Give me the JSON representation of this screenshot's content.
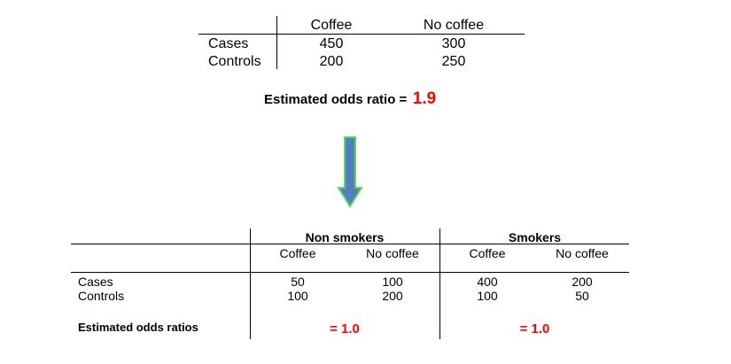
{
  "crude_table": {
    "col_headers": [
      "Coffee",
      "No coffee"
    ],
    "rows": [
      {
        "label": "Cases",
        "values": [
          "450",
          "300"
        ]
      },
      {
        "label": "Controls",
        "values": [
          "200",
          "250"
        ]
      }
    ],
    "odds_label": "Estimated odds ratio =",
    "odds_value": "1.9"
  },
  "arrow": {
    "icon": "down-arrow-icon",
    "fill": "#4f81bd",
    "stroke": "#5fd35f"
  },
  "stratified_table": {
    "groups": [
      {
        "name": "Non smokers",
        "col_headers": [
          "Coffee",
          "No coffee"
        ],
        "odds_value": "= 1.0"
      },
      {
        "name": "Smokers",
        "col_headers": [
          "Coffee",
          "No coffee"
        ],
        "odds_value": "= 1.0"
      }
    ],
    "rows": [
      {
        "label": "Cases",
        "values": [
          "50",
          "100",
          "400",
          "200"
        ]
      },
      {
        "label": "Controls",
        "values": [
          "100",
          "200",
          "100",
          "50"
        ]
      }
    ],
    "odds_label": "Estimated odds ratios"
  },
  "colors": {
    "accent": "#ff0000",
    "arrow_fill": "#4f81bd",
    "arrow_border": "#5fd35f"
  }
}
